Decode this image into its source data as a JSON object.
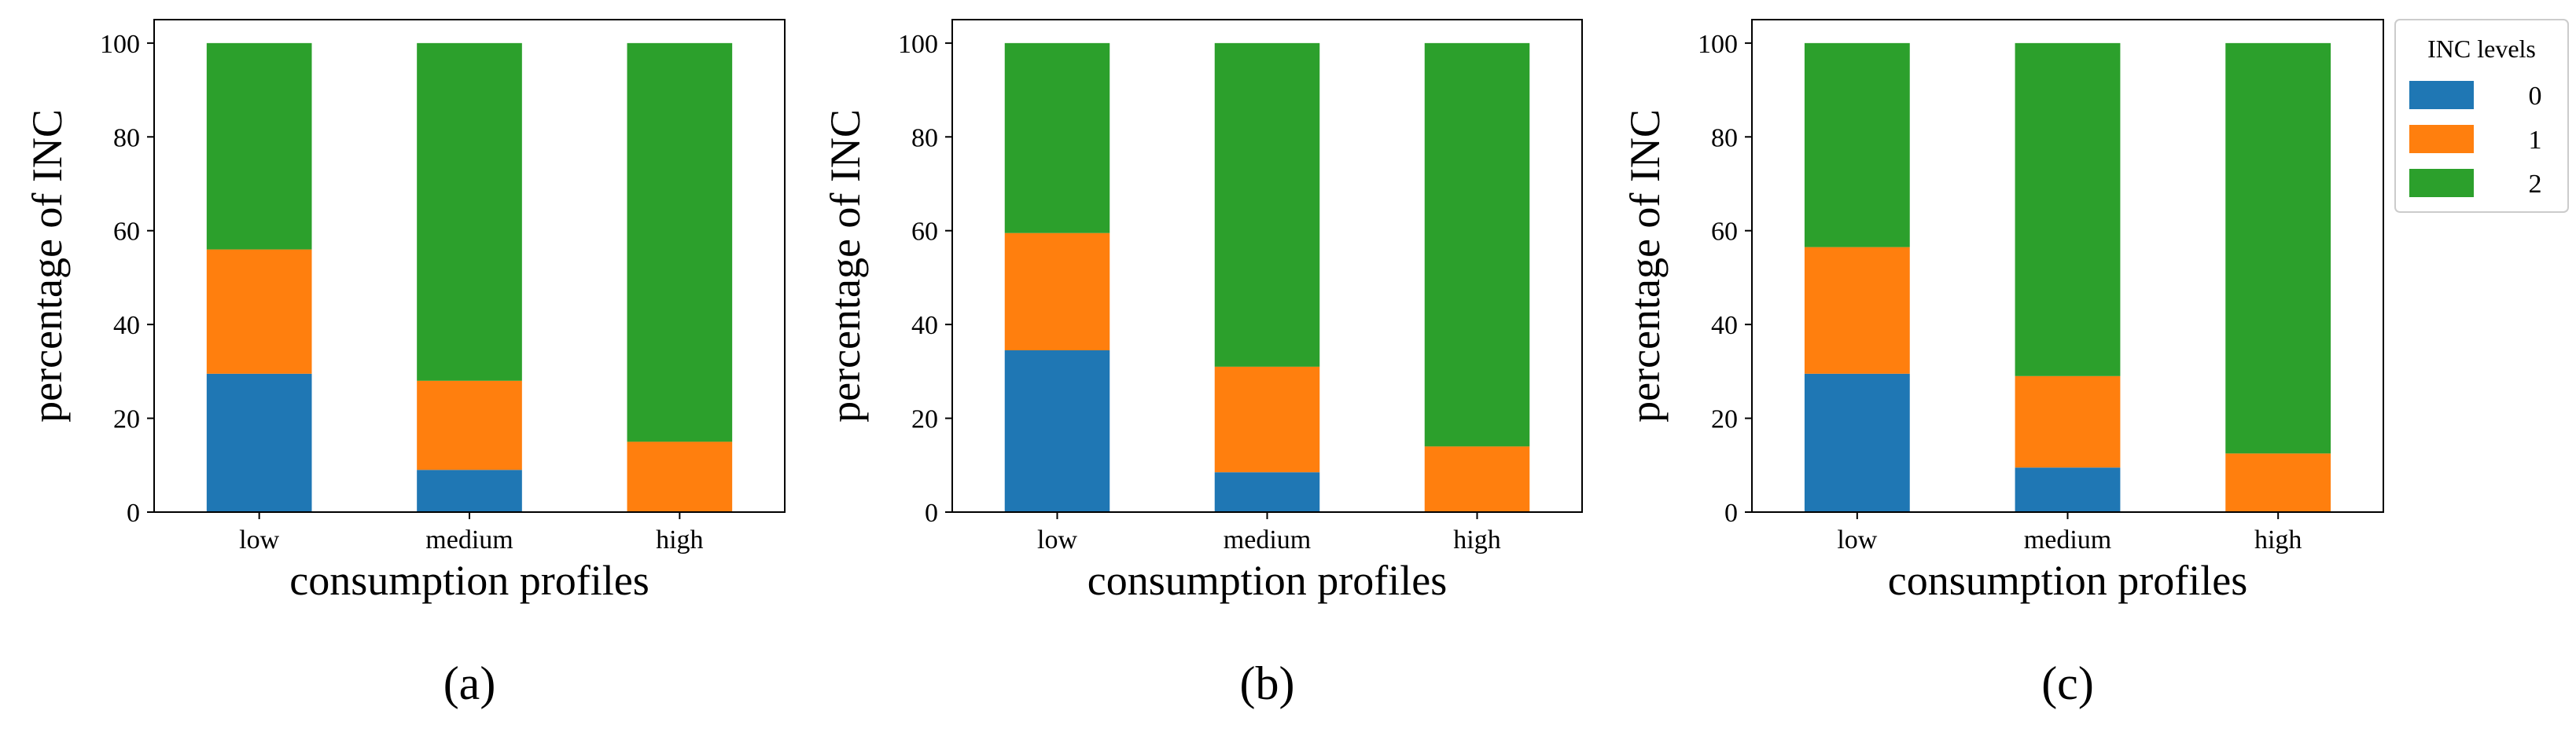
{
  "chart_data": [
    {
      "type": "bar",
      "stacked": true,
      "panel_label": "(a)",
      "categories": [
        "low",
        "medium",
        "high"
      ],
      "xlabel": "consumption profiles",
      "ylabel": "percentage of INC",
      "ylim": [
        0,
        105
      ],
      "yticks": [
        0,
        20,
        40,
        60,
        80,
        100
      ],
      "series": [
        {
          "name": "0",
          "color": "#1f77b4",
          "values": [
            29.5,
            9,
            0
          ]
        },
        {
          "name": "1",
          "color": "#ff7f0e",
          "values": [
            26.5,
            19,
            15
          ]
        },
        {
          "name": "2",
          "color": "#2ca02c",
          "values": [
            44,
            72,
            85
          ]
        }
      ]
    },
    {
      "type": "bar",
      "stacked": true,
      "panel_label": "(b)",
      "categories": [
        "low",
        "medium",
        "high"
      ],
      "xlabel": "consumption profiles",
      "ylabel": "percentage of INC",
      "ylim": [
        0,
        105
      ],
      "yticks": [
        0,
        20,
        40,
        60,
        80,
        100
      ],
      "series": [
        {
          "name": "0",
          "color": "#1f77b4",
          "values": [
            34.5,
            8.5,
            0
          ]
        },
        {
          "name": "1",
          "color": "#ff7f0e",
          "values": [
            25,
            22.5,
            14
          ]
        },
        {
          "name": "2",
          "color": "#2ca02c",
          "values": [
            40.5,
            69,
            86
          ]
        }
      ]
    },
    {
      "type": "bar",
      "stacked": true,
      "panel_label": "(c)",
      "categories": [
        "low",
        "medium",
        "high"
      ],
      "xlabel": "consumption profiles",
      "ylabel": "percentage of INC",
      "ylim": [
        0,
        105
      ],
      "yticks": [
        0,
        20,
        40,
        60,
        80,
        100
      ],
      "series": [
        {
          "name": "0",
          "color": "#1f77b4",
          "values": [
            29.5,
            9.5,
            0
          ]
        },
        {
          "name": "1",
          "color": "#ff7f0e",
          "values": [
            27,
            19.5,
            12.5
          ]
        },
        {
          "name": "2",
          "color": "#2ca02c",
          "values": [
            43.5,
            71,
            87.5
          ]
        }
      ]
    }
  ],
  "legend": {
    "title": "INC levels",
    "placement": "outside-right",
    "entries": [
      {
        "label": "0",
        "color": "#1f77b4"
      },
      {
        "label": "1",
        "color": "#ff7f0e"
      },
      {
        "label": "2",
        "color": "#2ca02c"
      }
    ]
  }
}
